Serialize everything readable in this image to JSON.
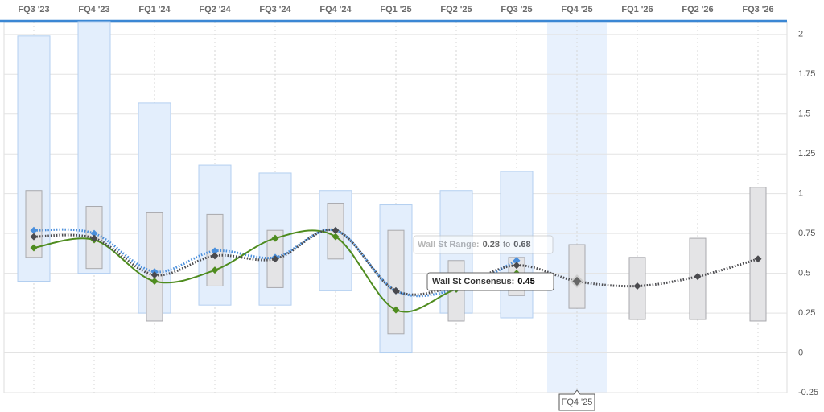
{
  "chart_data": {
    "type": "range",
    "categories": [
      "FQ3 '23",
      "FQ4 '23",
      "FQ1 '24",
      "FQ2 '24",
      "FQ3 '24",
      "FQ4 '24",
      "FQ1 '25",
      "FQ2 '25",
      "FQ3 '25",
      "FQ4 '25",
      "FQ1 '26",
      "FQ2 '26",
      "FQ3 '26"
    ],
    "ylim": [
      -0.25,
      2.08
    ],
    "yticks": [
      -0.25,
      0,
      0.25,
      0.5,
      0.75,
      1,
      1.25,
      1.5,
      1.75,
      2
    ],
    "grid": true,
    "highlight": 9,
    "estimate_range": {
      "color": "#e3eefc",
      "edge": "#b3cff0",
      "low": [
        0.45,
        0.5,
        0.25,
        0.3,
        0.3,
        0.39,
        0,
        0.25,
        0.22,
        null,
        null,
        null,
        null
      ],
      "high": [
        1.99,
        2.1,
        1.57,
        1.18,
        1.13,
        1.02,
        0.93,
        1.02,
        1.14,
        null,
        null,
        null,
        null
      ]
    },
    "wall_st_range": {
      "color": "#e4e4e6",
      "edge": "#a9a9ad",
      "low": [
        0.6,
        0.53,
        0.2,
        0.42,
        0.41,
        0.59,
        0.12,
        0.2,
        0.36,
        0.28,
        0.21,
        0.21,
        0.2
      ],
      "high": [
        1.02,
        0.92,
        0.88,
        0.87,
        0.77,
        0.94,
        0.77,
        0.58,
        0.6,
        0.68,
        0.6,
        0.72,
        1.04
      ]
    },
    "series": [
      {
        "color": "#4a8fdc",
        "dash": true,
        "values": [
          0.77,
          0.75,
          0.51,
          0.64,
          0.6,
          0.77,
          0.39,
          0.4,
          0.58,
          null,
          null,
          null,
          null
        ]
      },
      {
        "color": "#4f8c1f",
        "dash": false,
        "values": [
          0.66,
          0.71,
          0.45,
          0.52,
          0.72,
          0.73,
          0.27,
          0.4,
          0.5,
          null,
          null,
          null,
          null
        ]
      },
      {
        "color": "#4a4a4e",
        "dash": true,
        "values": [
          0.73,
          0.72,
          0.49,
          0.61,
          0.59,
          0.77,
          0.39,
          0.42,
          0.55,
          0.45,
          0.42,
          0.48,
          0.59
        ]
      }
    ],
    "tooltip": {
      "range_label": "Wall St Range:",
      "to": "to",
      "consensus_label": "Wall St Consensus:"
    }
  }
}
